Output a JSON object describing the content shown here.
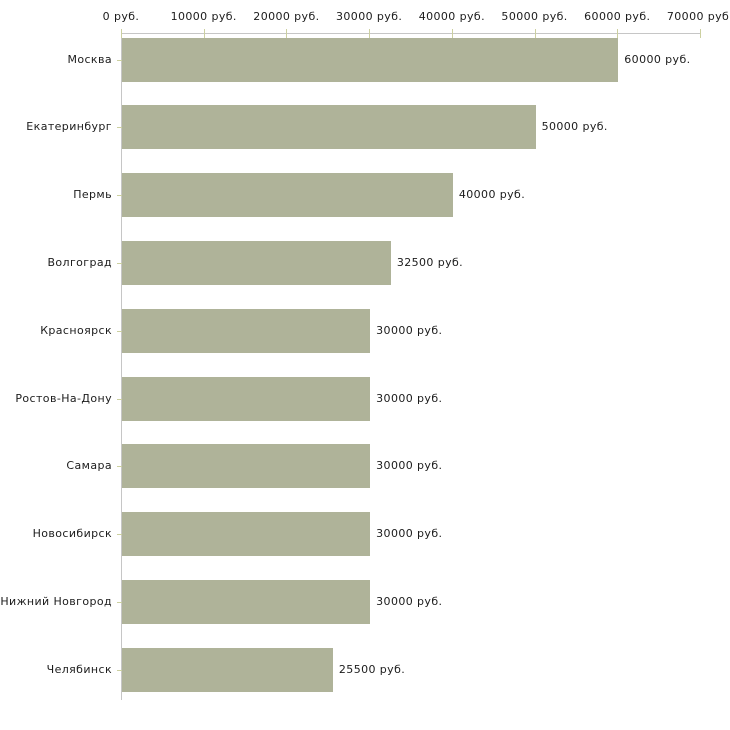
{
  "chart_data": {
    "type": "bar",
    "orientation": "horizontal",
    "title": "",
    "xlabel": "",
    "ylabel": "",
    "grid": false,
    "legend": false,
    "xlim": [
      0,
      70000
    ],
    "categories": [
      "Москва",
      "Екатеринбург",
      "Пермь",
      "Волгоград",
      "Красноярск",
      "Ростов-На-Дону",
      "Самара",
      "Новосибирск",
      "Нижний Новгород",
      "Челябинск"
    ],
    "values": [
      60000,
      50000,
      40000,
      32500,
      30000,
      30000,
      30000,
      30000,
      30000,
      25500
    ],
    "value_labels": [
      "60000 руб.",
      "50000 руб.",
      "40000 руб.",
      "32500 руб.",
      "30000 руб.",
      "30000 руб.",
      "30000 руб.",
      "30000 руб.",
      "30000 руб.",
      "25500 руб."
    ],
    "x_ticks": [
      {
        "value": 0,
        "label": "0 руб."
      },
      {
        "value": 10000,
        "label": "10000 руб."
      },
      {
        "value": 20000,
        "label": "20000 руб."
      },
      {
        "value": 30000,
        "label": "30000 руб."
      },
      {
        "value": 40000,
        "label": "40000 руб."
      },
      {
        "value": 50000,
        "label": "50000 руб."
      },
      {
        "value": 60000,
        "label": "60000 руб."
      },
      {
        "value": 70000,
        "label": "70000 руб."
      }
    ],
    "colors": {
      "bar": "#afb399",
      "axis_line": "#c6c6c6",
      "tick_mark": "#ccd0a0",
      "text": "#1c1c1c",
      "background": "#ffffff"
    }
  }
}
